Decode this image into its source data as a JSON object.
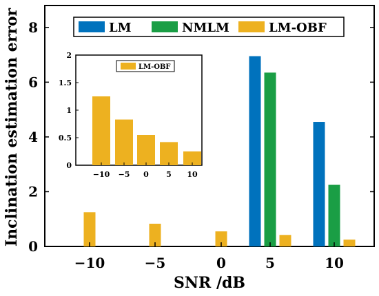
{
  "chart_data": [
    {
      "type": "bar",
      "xlabel": "SNR /dB",
      "ylabel": "Inclination estimation error",
      "categories": [
        "−10",
        "−5",
        "0",
        "5",
        "10"
      ],
      "ylim": [
        0,
        8.8
      ],
      "yticks": [
        "0",
        "2",
        "4",
        "6",
        "8"
      ],
      "legend_position": "top-center",
      "series": [
        {
          "name": "LM",
          "color": "#0072BD",
          "values": [
            null,
            null,
            null,
            6.95,
            4.55
          ]
        },
        {
          "name": "NMLM",
          "color": "#1A9E45",
          "values": [
            null,
            null,
            null,
            6.35,
            2.25
          ]
        },
        {
          "name": "LM-OBF",
          "color": "#EDB120",
          "values": [
            1.25,
            0.83,
            0.55,
            0.42,
            0.25
          ]
        }
      ]
    },
    {
      "type": "bar",
      "categories": [
        "−10",
        "−5",
        "0",
        "5",
        "10"
      ],
      "ylim": [
        0,
        2
      ],
      "yticks": [
        "0",
        "0.5",
        "1",
        "1.5",
        "2"
      ],
      "legend_position": "top-center",
      "series": [
        {
          "name": "LM-OBF",
          "color": "#EDB120",
          "values": [
            1.25,
            0.83,
            0.55,
            0.42,
            0.25
          ]
        }
      ]
    }
  ]
}
